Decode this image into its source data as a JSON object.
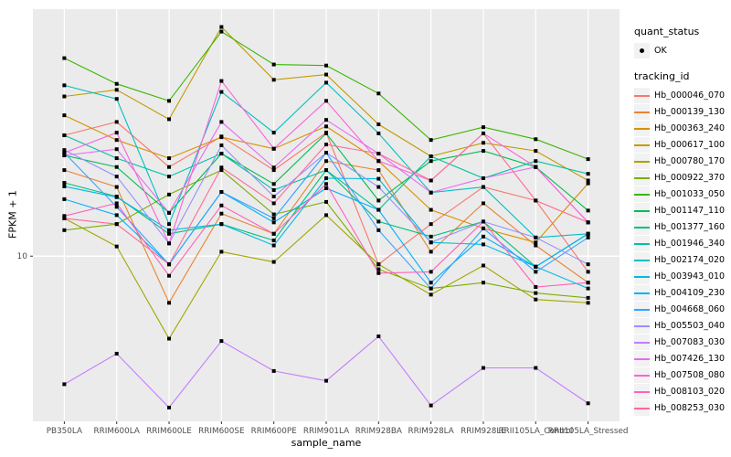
{
  "figure": {
    "colors": {
      "panel_background": "#EBEBEB",
      "grid": "#FFFFFF",
      "axis_text": "#4D4D4D",
      "tick_mark": "#333333",
      "point": "#000000",
      "legend_key_background": "#F2F2F2"
    }
  },
  "legend": {
    "quant_status_title": "quant_status",
    "ok_label": "OK",
    "tracking_id_title": "tracking_id"
  },
  "axes": {
    "y_tick_labels": [
      "10"
    ],
    "x_title": "sample_name",
    "y_title": "FPKM + 1"
  },
  "chart_data": {
    "type": "line",
    "title": "",
    "xlabel": "sample_name",
    "ylabel": "FPKM + 1",
    "y_scale": "log10",
    "y_breaks": [
      10
    ],
    "ylim": [
      2.3,
      90
    ],
    "grid": "major",
    "legend_position": "right",
    "point_shape": "filled-square",
    "quant_status": "OK",
    "x_categories": [
      "PB350LA",
      "RRIM600LA",
      "RRIM600LE",
      "RRIM600SE",
      "RRIM600PE",
      "RRIM901LA",
      "RRIM928BA",
      "RRIM928LA",
      "RRIM928LE",
      "RRII105LA_Control",
      "RRII105LA_Stressed"
    ],
    "series": [
      {
        "name": "Hb_000046_070",
        "color": "#F8766D",
        "values": [
          29.3,
          33.0,
          22.1,
          29.0,
          21.5,
          30.0,
          9.3,
          13.3,
          18.5,
          16.4,
          8.7
        ]
      },
      {
        "name": "Hb_000139_130",
        "color": "#EA8331",
        "values": [
          21.5,
          18.5,
          6.6,
          14.6,
          12.2,
          23.3,
          21.5,
          10.4,
          16.0,
          11.0,
          7.9
        ]
      },
      {
        "name": "Hb_000363_240",
        "color": "#D89000",
        "values": [
          35.0,
          28.1,
          23.9,
          28.8,
          26.0,
          31.7,
          23.3,
          15.1,
          12.8,
          11.3,
          19.1
        ]
      },
      {
        "name": "Hb_000617_100",
        "color": "#C09B00",
        "values": [
          41.4,
          43.9,
          33.8,
          76.8,
          48.0,
          50.3,
          32.3,
          24.3,
          27.4,
          25.5,
          19.6
        ]
      },
      {
        "name": "Hb_000780_170",
        "color": "#A3A500",
        "values": [
          14.0,
          10.9,
          4.8,
          10.4,
          9.5,
          14.4,
          9.3,
          7.1,
          9.2,
          6.8,
          6.6
        ]
      },
      {
        "name": "Hb_000922_370",
        "color": "#7CAE00",
        "values": [
          12.6,
          13.3,
          17.3,
          21.5,
          14.5,
          16.2,
          8.9,
          7.5,
          7.9,
          7.2,
          6.9
        ]
      },
      {
        "name": "Hb_001033_050",
        "color": "#39B600",
        "values": [
          58.2,
          46.3,
          39.8,
          73.7,
          55.0,
          54.5,
          42.5,
          28.1,
          31.5,
          28.3,
          23.7
        ]
      },
      {
        "name": "Hb_001147_110",
        "color": "#00BB4E",
        "values": [
          24.5,
          22.1,
          14.7,
          24.9,
          19.0,
          29.8,
          16.4,
          23.3,
          25.5,
          22.1,
          15.0
        ]
      },
      {
        "name": "Hb_001377_160",
        "color": "#00BF7D",
        "values": [
          19.2,
          17.0,
          12.2,
          13.3,
          11.5,
          21.5,
          13.6,
          11.9,
          13.6,
          9.1,
          12.2
        ]
      },
      {
        "name": "Hb_001946_340",
        "color": "#00C1A3",
        "values": [
          29.3,
          23.9,
          20.3,
          24.9,
          18.0,
          21.5,
          15.1,
          24.3,
          20.0,
          23.3,
          20.8
        ]
      },
      {
        "name": "Hb_002174_020",
        "color": "#00BFC4",
        "values": [
          45.7,
          40.5,
          13.3,
          43.1,
          30.0,
          46.8,
          29.8,
          17.6,
          18.5,
          11.8,
          12.2
        ]
      },
      {
        "name": "Hb_003943_010",
        "color": "#00BAE0",
        "values": [
          18.6,
          16.9,
          12.6,
          13.3,
          11.0,
          20.0,
          19.9,
          11.3,
          11.1,
          9.1,
          7.5
        ]
      },
      {
        "name": "Hb_004109_230",
        "color": "#00B0F6",
        "values": [
          16.6,
          14.4,
          9.3,
          17.7,
          13.5,
          18.3,
          15.1,
          7.9,
          11.9,
          9.1,
          12.2
        ]
      },
      {
        "name": "Hb_004668_060",
        "color": "#35A2FF",
        "values": [
          25.1,
          15.5,
          9.3,
          17.7,
          14.0,
          25.1,
          12.6,
          7.5,
          12.8,
          8.7,
          11.8
        ]
      },
      {
        "name": "Hb_005503_040",
        "color": "#9590FF",
        "values": [
          25.7,
          20.3,
          11.2,
          26.8,
          17.0,
          25.1,
          18.5,
          11.3,
          13.6,
          11.8,
          9.3
        ]
      },
      {
        "name": "Hb_007083_030",
        "color": "#C77CFF",
        "values": [
          3.2,
          4.2,
          2.6,
          4.7,
          3.6,
          3.3,
          4.9,
          2.65,
          3.7,
          3.7,
          2.7
        ]
      },
      {
        "name": "Hb_007426_130",
        "color": "#E76BF3",
        "values": [
          24.5,
          25.9,
          14.7,
          33.0,
          22.0,
          33.6,
          24.9,
          17.6,
          20.0,
          22.1,
          13.5
        ]
      },
      {
        "name": "Hb_007508_080",
        "color": "#FA62DB",
        "values": [
          25.1,
          30.0,
          11.2,
          47.5,
          26.0,
          39.8,
          23.3,
          19.6,
          29.8,
          22.1,
          13.5
        ]
      },
      {
        "name": "Hb_008103_020",
        "color": "#FF62BC",
        "values": [
          14.3,
          16.0,
          8.4,
          15.7,
          12.2,
          19.0,
          8.6,
          8.7,
          13.6,
          7.6,
          7.9
        ]
      },
      {
        "name": "Hb_008253_030",
        "color": "#FF6A98",
        "values": [
          14.0,
          13.3,
          9.3,
          22.0,
          16.0,
          27.0,
          24.9,
          19.6,
          29.8,
          16.4,
          13.5
        ]
      }
    ]
  }
}
